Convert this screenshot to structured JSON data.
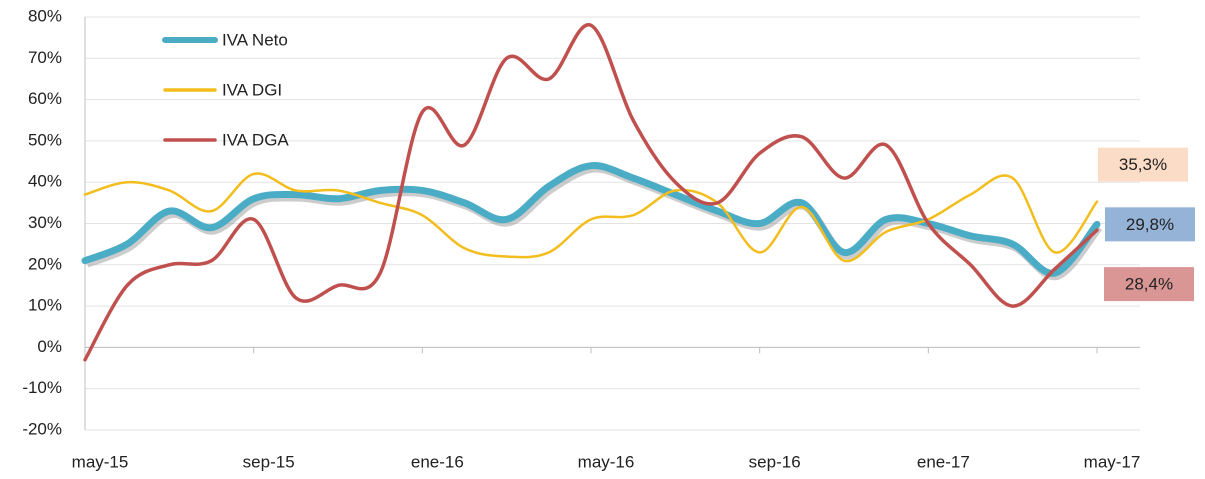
{
  "chart_data": {
    "type": "line",
    "categories": [
      "may-15",
      null,
      null,
      null,
      "sep-15",
      null,
      null,
      null,
      "ene-16",
      null,
      null,
      null,
      "may-16",
      null,
      null,
      null,
      "sep-16",
      null,
      null,
      null,
      "ene-17",
      null,
      null,
      null,
      "may-17"
    ],
    "ylim": [
      -20,
      80
    ],
    "yticks": [
      {
        "value": -20,
        "label": "-20%"
      },
      {
        "value": -10,
        "label": "-10%"
      },
      {
        "value": 0,
        "label": "0%"
      },
      {
        "value": 10,
        "label": "10%"
      },
      {
        "value": 20,
        "label": "20%"
      },
      {
        "value": 30,
        "label": "30%"
      },
      {
        "value": 40,
        "label": "40%"
      },
      {
        "value": 50,
        "label": "50%"
      },
      {
        "value": 60,
        "label": "60%"
      },
      {
        "value": 70,
        "label": "70%"
      },
      {
        "value": 80,
        "label": "80%"
      }
    ],
    "grid": true,
    "legend": "upper left",
    "series": [
      {
        "name": "IVA Neto",
        "color": "#4bacc6",
        "label_color": "#95b3d7",
        "values": [
          21,
          25,
          33,
          29,
          36,
          37,
          36,
          38,
          38,
          35,
          31,
          39,
          44,
          41,
          37,
          33,
          30,
          35,
          23,
          31,
          30,
          27,
          25,
          18,
          29.8
        ],
        "value_labels": [
          null,
          null,
          null,
          null,
          null,
          null,
          null,
          null,
          null,
          null,
          null,
          null,
          null,
          null,
          null,
          null,
          null,
          null,
          null,
          null,
          null,
          null,
          null,
          null,
          "29,8%"
        ]
      },
      {
        "name": "IVA DGI",
        "color": "#f2bd1d",
        "label_color": "#fbdcc6",
        "values": [
          37,
          40,
          38,
          33,
          42,
          38,
          38,
          35,
          32,
          24,
          22,
          23,
          31,
          32,
          38,
          35,
          23,
          34,
          21,
          28,
          31,
          37,
          41,
          23,
          35.3
        ],
        "value_labels": [
          null,
          null,
          null,
          null,
          null,
          null,
          null,
          null,
          null,
          null,
          null,
          null,
          null,
          null,
          null,
          null,
          null,
          null,
          null,
          null,
          null,
          null,
          null,
          null,
          "35,3%"
        ]
      },
      {
        "name": "IVA DGA",
        "color": "#c0504d",
        "label_color": "#d99694",
        "values": [
          -3,
          15,
          20,
          21,
          31,
          12,
          15,
          18,
          57,
          49,
          70,
          65,
          78,
          55,
          40,
          35,
          47,
          51,
          41,
          49,
          30,
          20,
          10,
          19,
          28.4
        ],
        "value_labels": [
          null,
          null,
          null,
          null,
          null,
          null,
          null,
          null,
          null,
          null,
          null,
          null,
          null,
          null,
          null,
          null,
          null,
          null,
          null,
          null,
          null,
          null,
          null,
          null,
          "28,4%"
        ]
      }
    ]
  }
}
